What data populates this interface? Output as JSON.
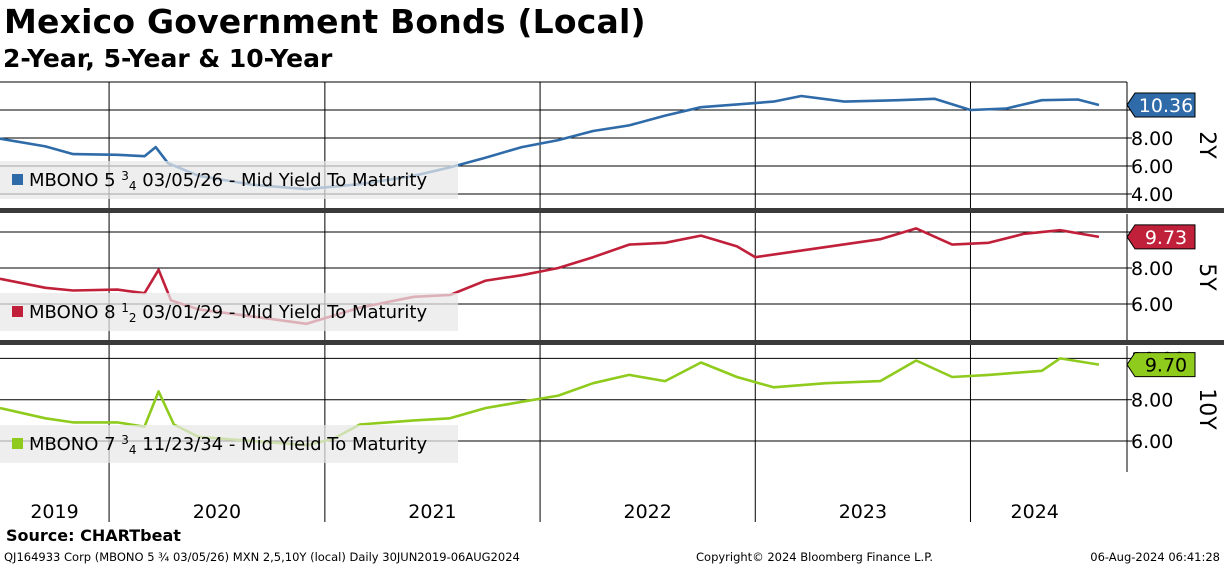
{
  "header": {
    "title": "Mexico Government Bonds (Local)",
    "subtitle": "2-Year, 5-Year & 10-Year"
  },
  "source": "Source: CHARTbeat",
  "footer": {
    "left": "QJ164933 Corp (MBONO 5 ¾ 03/05/26) MXN 2,5,10Y (local)  Daily 30JUN2019-06AUG2024",
    "center": "Copyright© 2024 Bloomberg Finance L.P.",
    "right": "06-Aug-2024 06:41:28"
  },
  "chart_data": {
    "type": "line",
    "x_axis": {
      "year_labels": [
        "2019",
        "2020",
        "2021",
        "2022",
        "2023",
        "2024"
      ],
      "range": [
        "2019-06-30",
        "2024-08-06"
      ]
    },
    "panels": [
      {
        "panel_label": "2Y",
        "series_name": "MBONO 5 ³⁄₄ 03/05/26 - Mid Yield To Maturity",
        "legend_main": "MBONO 5 ",
        "legend_sup": "3",
        "legend_sub": "4",
        "legend_rest": " 03/05/26 - Mid Yield To Maturity",
        "color": "#2e6ba8",
        "last_value": 10.36,
        "last_value_label": "10.36",
        "ylim": [
          3.0,
          12.0
        ],
        "yticks": [
          4.0,
          6.0,
          8.0,
          10.0
        ],
        "ytick_labels": [
          "4.00",
          "6.00",
          "8.00",
          ""
        ],
        "points": [
          [
            "2019-06-30",
            7.95
          ],
          [
            "2019-09-15",
            7.4
          ],
          [
            "2019-11-01",
            6.85
          ],
          [
            "2020-01-15",
            6.8
          ],
          [
            "2020-03-01",
            6.7
          ],
          [
            "2020-03-20",
            7.35
          ],
          [
            "2020-04-10",
            6.2
          ],
          [
            "2020-06-01",
            5.3
          ],
          [
            "2020-09-01",
            4.65
          ],
          [
            "2020-12-01",
            4.35
          ],
          [
            "2021-03-01",
            4.7
          ],
          [
            "2021-06-01",
            5.3
          ],
          [
            "2021-08-01",
            5.9
          ],
          [
            "2021-10-01",
            6.6
          ],
          [
            "2021-12-01",
            7.35
          ],
          [
            "2022-02-01",
            7.85
          ],
          [
            "2022-04-01",
            8.5
          ],
          [
            "2022-06-01",
            8.9
          ],
          [
            "2022-08-01",
            9.6
          ],
          [
            "2022-10-01",
            10.2
          ],
          [
            "2022-12-01",
            10.4
          ],
          [
            "2023-02-01",
            10.6
          ],
          [
            "2023-03-20",
            11.0
          ],
          [
            "2023-06-01",
            10.6
          ],
          [
            "2023-09-01",
            10.7
          ],
          [
            "2023-11-01",
            10.8
          ],
          [
            "2024-01-01",
            10.0
          ],
          [
            "2024-03-01",
            10.1
          ],
          [
            "2024-05-01",
            10.7
          ],
          [
            "2024-07-01",
            10.75
          ],
          [
            "2024-08-06",
            10.36
          ]
        ]
      },
      {
        "panel_label": "5Y",
        "series_name": "MBONO 8 ¹⁄₂ 03/01/29 - Mid Yield To Maturity",
        "legend_main": "MBONO 8 ",
        "legend_sup": "1",
        "legend_sub": "2",
        "legend_rest": " 03/01/29 - Mid Yield To Maturity",
        "color": "#c0203a",
        "last_value": 9.73,
        "last_value_label": "9.73",
        "ylim": [
          4.0,
          11.0
        ],
        "yticks": [
          6.0,
          8.0,
          10.0
        ],
        "ytick_labels": [
          "6.00",
          "8.00",
          ""
        ],
        "points": [
          [
            "2019-06-30",
            7.4
          ],
          [
            "2019-09-15",
            6.9
          ],
          [
            "2019-11-01",
            6.75
          ],
          [
            "2020-01-15",
            6.8
          ],
          [
            "2020-03-01",
            6.6
          ],
          [
            "2020-03-25",
            7.9
          ],
          [
            "2020-04-15",
            6.2
          ],
          [
            "2020-06-01",
            5.7
          ],
          [
            "2020-09-01",
            5.3
          ],
          [
            "2020-12-01",
            4.9
          ],
          [
            "2021-03-01",
            5.8
          ],
          [
            "2021-06-01",
            6.4
          ],
          [
            "2021-08-01",
            6.5
          ],
          [
            "2021-10-01",
            7.3
          ],
          [
            "2021-12-01",
            7.6
          ],
          [
            "2022-02-01",
            8.0
          ],
          [
            "2022-04-01",
            8.6
          ],
          [
            "2022-06-01",
            9.3
          ],
          [
            "2022-08-01",
            9.4
          ],
          [
            "2022-10-01",
            9.8
          ],
          [
            "2022-12-01",
            9.2
          ],
          [
            "2023-01-01",
            8.6
          ],
          [
            "2023-08-01",
            9.6
          ],
          [
            "2023-10-01",
            10.2
          ],
          [
            "2023-12-01",
            9.3
          ],
          [
            "2024-02-01",
            9.4
          ],
          [
            "2024-04-01",
            9.9
          ],
          [
            "2024-06-01",
            10.1
          ],
          [
            "2024-08-06",
            9.73
          ]
        ]
      },
      {
        "panel_label": "10Y",
        "series_name": "MBONO 7 ³⁄₄ 11/23/34 - Mid Yield To Maturity",
        "legend_main": "MBONO 7 ",
        "legend_sup": "3",
        "legend_sub": "4",
        "legend_rest": " 11/23/34 - Mid Yield To Maturity",
        "color": "#8fcb1d",
        "last_value": 9.7,
        "last_value_label": "9.70",
        "ylim": [
          4.5,
          10.6
        ],
        "yticks": [
          6.0,
          8.0,
          10.0
        ],
        "ytick_labels": [
          "6.00",
          "8.00",
          "10.00"
        ],
        "points": [
          [
            "2019-06-30",
            7.6
          ],
          [
            "2019-09-15",
            7.1
          ],
          [
            "2019-11-01",
            6.9
          ],
          [
            "2020-01-15",
            6.9
          ],
          [
            "2020-03-01",
            6.7
          ],
          [
            "2020-03-25",
            8.4
          ],
          [
            "2020-04-20",
            6.8
          ],
          [
            "2020-06-01",
            6.2
          ],
          [
            "2020-09-01",
            6.0
          ],
          [
            "2020-12-01",
            5.8
          ],
          [
            "2021-01-15",
            6.1
          ],
          [
            "2021-03-01",
            6.8
          ],
          [
            "2021-06-01",
            7.0
          ],
          [
            "2021-08-01",
            7.1
          ],
          [
            "2021-10-01",
            7.6
          ],
          [
            "2021-12-01",
            7.9
          ],
          [
            "2022-02-01",
            8.2
          ],
          [
            "2022-04-01",
            8.8
          ],
          [
            "2022-06-01",
            9.2
          ],
          [
            "2022-08-01",
            8.9
          ],
          [
            "2022-10-01",
            9.8
          ],
          [
            "2022-12-01",
            9.1
          ],
          [
            "2023-02-01",
            8.6
          ],
          [
            "2023-05-01",
            8.8
          ],
          [
            "2023-08-01",
            8.9
          ],
          [
            "2023-10-01",
            9.9
          ],
          [
            "2023-12-01",
            9.1
          ],
          [
            "2024-02-01",
            9.2
          ],
          [
            "2024-05-01",
            9.4
          ],
          [
            "2024-06-01",
            10.0
          ],
          [
            "2024-08-06",
            9.7
          ]
        ]
      }
    ]
  }
}
